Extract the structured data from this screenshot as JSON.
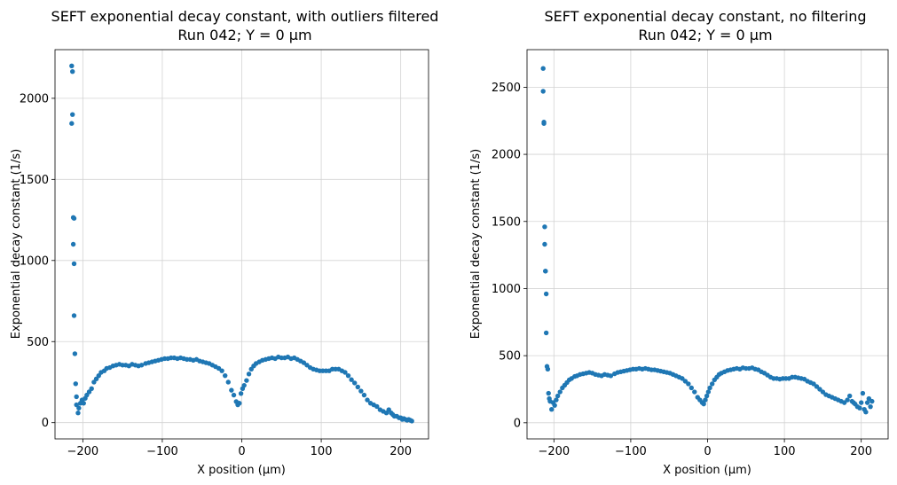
{
  "figure": {
    "background": "#ffffff",
    "marker_color": "#1f77b4"
  },
  "chart_data": [
    {
      "type": "scatter",
      "title_line1": "SEFT exponential decay constant, with outliers filtered",
      "title_line2": "Run 042; Y = 0 µm",
      "xlabel": "X position (µm)",
      "ylabel": "Exponential decay constant (1/s)",
      "xlim": [
        -235,
        235
      ],
      "ylim": [
        -100,
        2300
      ],
      "xticks": [
        -200,
        -100,
        0,
        100,
        200
      ],
      "xtick_labels": [
        "−200",
        "−100",
        "0",
        "100",
        "200"
      ],
      "yticks": [
        0,
        500,
        1000,
        1500,
        2000
      ],
      "ytick_labels": [
        "0",
        "500",
        "1000",
        "1500",
        "2000"
      ],
      "grid": true,
      "series": [
        {
          "color": "#1f77b4",
          "x": [
            -214,
            -213,
            -213,
            -214,
            -212,
            -211,
            -212,
            -211,
            -211,
            -210,
            -209,
            -208,
            -208,
            -206,
            -205,
            -203,
            -201,
            -199,
            -197,
            -195,
            -192,
            -189,
            -186,
            -183,
            -180,
            -177,
            -173,
            -170,
            -166,
            -162,
            -158,
            -154,
            -150,
            -146,
            -142,
            -138,
            -134,
            -130,
            -126,
            -121,
            -117,
            -113,
            -109,
            -105,
            -101,
            -97,
            -93,
            -89,
            -85,
            -81,
            -77,
            -73,
            -69,
            -65,
            -61,
            -57,
            -53,
            -49,
            -45,
            -41,
            -37,
            -33,
            -29,
            -25,
            -21,
            -17,
            -13,
            -10,
            -7,
            -5,
            -3,
            -1,
            1,
            3,
            6,
            9,
            12,
            15,
            18,
            22,
            26,
            30,
            34,
            38,
            42,
            46,
            50,
            54,
            58,
            62,
            66,
            70,
            74,
            78,
            82,
            86,
            90,
            94,
            98,
            102,
            106,
            110,
            114,
            118,
            122,
            126,
            130,
            134,
            138,
            142,
            146,
            150,
            154,
            158,
            162,
            166,
            170,
            174,
            178,
            182,
            185,
            188,
            190,
            192,
            195,
            198,
            200,
            202,
            204,
            206,
            208,
            210,
            212,
            214
          ],
          "y": [
            2200,
            2165,
            1900,
            1845,
            1265,
            1260,
            1100,
            980,
            660,
            425,
            240,
            160,
            110,
            60,
            90,
            120,
            140,
            120,
            150,
            170,
            190,
            210,
            250,
            270,
            290,
            310,
            320,
            335,
            340,
            350,
            355,
            360,
            355,
            355,
            350,
            360,
            355,
            350,
            355,
            365,
            370,
            375,
            380,
            385,
            390,
            395,
            395,
            400,
            400,
            395,
            400,
            395,
            390,
            390,
            385,
            390,
            380,
            375,
            370,
            365,
            355,
            345,
            335,
            320,
            290,
            250,
            200,
            170,
            130,
            110,
            120,
            180,
            210,
            230,
            260,
            300,
            330,
            350,
            365,
            375,
            385,
            390,
            395,
            400,
            395,
            405,
            400,
            400,
            405,
            395,
            400,
            390,
            380,
            370,
            355,
            340,
            330,
            325,
            320,
            320,
            320,
            320,
            330,
            330,
            330,
            320,
            310,
            290,
            265,
            245,
            220,
            195,
            170,
            140,
            120,
            110,
            100,
            80,
            70,
            60,
            80,
            60,
            50,
            40,
            40,
            30,
            30,
            20,
            25,
            20,
            15,
            20,
            15,
            10
          ]
        }
      ]
    },
    {
      "type": "scatter",
      "title_line1": "SEFT exponential decay constant, no filtering",
      "title_line2": "Run 042; Y = 0 µm",
      "xlabel": "X position (µm)",
      "ylabel": "Exponential decay constant (1/s)",
      "xlim": [
        -235,
        235
      ],
      "ylim": [
        -120,
        2780
      ],
      "xticks": [
        -200,
        -100,
        0,
        100,
        200
      ],
      "xtick_labels": [
        "−200",
        "−100",
        "0",
        "100",
        "200"
      ],
      "yticks": [
        0,
        500,
        1000,
        1500,
        2000,
        2500
      ],
      "ytick_labels": [
        "0",
        "500",
        "1000",
        "1500",
        "2000",
        "2500"
      ],
      "grid": true,
      "series": [
        {
          "color": "#1f77b4",
          "x": [
            -214,
            -214,
            -213,
            -213,
            -212,
            -212,
            -211,
            -211,
            -210,
            -210,
            -209,
            -208,
            -207,
            -206,
            -205,
            -203,
            -201,
            -199,
            -197,
            -195,
            -192,
            -189,
            -186,
            -183,
            -180,
            -177,
            -173,
            -170,
            -166,
            -162,
            -158,
            -154,
            -150,
            -146,
            -142,
            -138,
            -134,
            -130,
            -126,
            -121,
            -117,
            -113,
            -109,
            -105,
            -101,
            -97,
            -93,
            -89,
            -85,
            -81,
            -77,
            -73,
            -69,
            -65,
            -61,
            -57,
            -53,
            -49,
            -45,
            -41,
            -37,
            -33,
            -29,
            -25,
            -21,
            -17,
            -13,
            -10,
            -7,
            -5,
            -3,
            -1,
            1,
            3,
            6,
            9,
            12,
            15,
            18,
            22,
            26,
            30,
            34,
            38,
            42,
            46,
            50,
            54,
            58,
            62,
            66,
            70,
            74,
            78,
            82,
            86,
            90,
            94,
            98,
            102,
            106,
            110,
            114,
            118,
            122,
            126,
            130,
            134,
            138,
            142,
            146,
            150,
            154,
            158,
            162,
            166,
            170,
            174,
            178,
            182,
            185,
            188,
            190,
            192,
            195,
            198,
            200,
            202,
            204,
            206,
            208,
            210,
            212,
            214
          ],
          "y": [
            2640,
            2470,
            2240,
            2230,
            1460,
            1330,
            1130,
            1130,
            960,
            670,
            420,
            400,
            220,
            180,
            160,
            100,
            150,
            130,
            170,
            200,
            230,
            260,
            280,
            300,
            320,
            330,
            345,
            350,
            360,
            365,
            370,
            375,
            370,
            360,
            355,
            350,
            360,
            355,
            350,
            365,
            375,
            380,
            385,
            390,
            395,
            400,
            400,
            405,
            400,
            405,
            400,
            395,
            395,
            390,
            385,
            380,
            375,
            370,
            360,
            350,
            340,
            330,
            310,
            290,
            260,
            230,
            190,
            170,
            150,
            140,
            170,
            200,
            230,
            260,
            290,
            320,
            340,
            360,
            370,
            380,
            390,
            395,
            400,
            405,
            400,
            410,
            405,
            405,
            410,
            400,
            395,
            380,
            370,
            355,
            340,
            330,
            330,
            325,
            330,
            330,
            330,
            340,
            340,
            335,
            330,
            325,
            310,
            300,
            290,
            270,
            250,
            230,
            210,
            200,
            190,
            180,
            170,
            160,
            150,
            170,
            200,
            160,
            150,
            140,
            120,
            110,
            150,
            220,
            100,
            80,
            150,
            180,
            120,
            160
          ]
        }
      ]
    }
  ]
}
